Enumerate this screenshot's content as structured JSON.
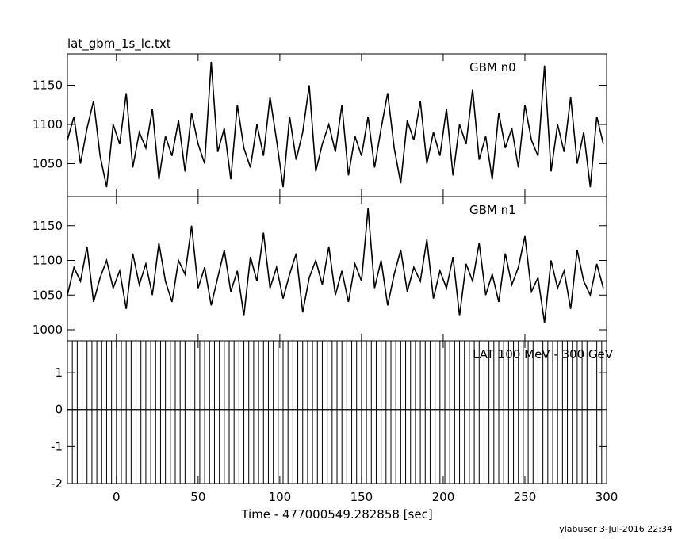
{
  "chart_data": [
    {
      "type": "line",
      "title": "lat_gbm_1s_lc.txt",
      "x": [
        -30,
        -26,
        -22,
        -18,
        -14,
        -10,
        -6,
        -2,
        2,
        6,
        10,
        14,
        18,
        22,
        26,
        30,
        34,
        38,
        42,
        46,
        50,
        54,
        58,
        62,
        66,
        70,
        74,
        78,
        82,
        86,
        90,
        94,
        98,
        102,
        106,
        110,
        114,
        118,
        122,
        126,
        130,
        134,
        138,
        142,
        146,
        150,
        154,
        158,
        162,
        166,
        170,
        174,
        178,
        182,
        186,
        190,
        194,
        198,
        202,
        206,
        210,
        214,
        218,
        222,
        226,
        230,
        234,
        238,
        242,
        246,
        250,
        254,
        258,
        262,
        266,
        270,
        274,
        278,
        282,
        286,
        290,
        294,
        298
      ],
      "series": [
        {
          "name": "GBM n0",
          "color": "#000000",
          "values": [
            1080,
            1110,
            1050,
            1095,
            1130,
            1060,
            1020,
            1100,
            1075,
            1140,
            1045,
            1090,
            1070,
            1120,
            1030,
            1085,
            1060,
            1105,
            1040,
            1115,
            1075,
            1050,
            1180,
            1065,
            1095,
            1030,
            1125,
            1070,
            1045,
            1100,
            1060,
            1135,
            1080,
            1020,
            1110,
            1055,
            1090,
            1150,
            1040,
            1075,
            1100,
            1065,
            1125,
            1035,
            1085,
            1060,
            1110,
            1045,
            1095,
            1140,
            1070,
            1025,
            1105,
            1080,
            1130,
            1050,
            1090,
            1060,
            1120,
            1035,
            1100,
            1075,
            1145,
            1055,
            1085,
            1030,
            1115,
            1070,
            1095,
            1045,
            1125,
            1080,
            1060,
            1175,
            1040,
            1100,
            1065,
            1135,
            1050,
            1090,
            1020,
            1110,
            1075
          ]
        }
      ],
      "xlim": [
        -30,
        300
      ],
      "xticks": [
        0,
        50,
        100,
        150,
        200,
        250,
        300
      ],
      "ylim": [
        1008,
        1190
      ],
      "yticks": [
        1050,
        1100,
        1150
      ]
    },
    {
      "type": "line",
      "x": [
        -30,
        -26,
        -22,
        -18,
        -14,
        -10,
        -6,
        -2,
        2,
        6,
        10,
        14,
        18,
        22,
        26,
        30,
        34,
        38,
        42,
        46,
        50,
        54,
        58,
        62,
        66,
        70,
        74,
        78,
        82,
        86,
        90,
        94,
        98,
        102,
        106,
        110,
        114,
        118,
        122,
        126,
        130,
        134,
        138,
        142,
        146,
        150,
        154,
        158,
        162,
        166,
        170,
        174,
        178,
        182,
        186,
        190,
        194,
        198,
        202,
        206,
        210,
        214,
        218,
        222,
        226,
        230,
        234,
        238,
        242,
        246,
        250,
        254,
        258,
        262,
        266,
        270,
        274,
        278,
        282,
        286,
        290,
        294,
        298
      ],
      "series": [
        {
          "name": "GBM n1",
          "color": "#000000",
          "values": [
            1050,
            1090,
            1070,
            1120,
            1040,
            1075,
            1100,
            1060,
            1085,
            1030,
            1110,
            1065,
            1095,
            1050,
            1125,
            1070,
            1040,
            1100,
            1080,
            1150,
            1060,
            1090,
            1035,
            1075,
            1115,
            1055,
            1085,
            1020,
            1105,
            1070,
            1140,
            1060,
            1090,
            1045,
            1080,
            1110,
            1025,
            1075,
            1100,
            1065,
            1120,
            1050,
            1085,
            1040,
            1095,
            1070,
            1175,
            1060,
            1100,
            1035,
            1080,
            1115,
            1055,
            1090,
            1070,
            1130,
            1045,
            1085,
            1060,
            1105,
            1020,
            1095,
            1070,
            1125,
            1050,
            1080,
            1040,
            1110,
            1065,
            1090,
            1135,
            1055,
            1075,
            1010,
            1100,
            1060,
            1085,
            1030,
            1115,
            1070,
            1050,
            1095,
            1060
          ]
        }
      ],
      "xlim": [
        -30,
        300
      ],
      "xticks": [
        0,
        50,
        100,
        150,
        200,
        250,
        300
      ],
      "ylim": [
        984,
        1192
      ],
      "yticks": [
        1000,
        1050,
        1100,
        1150
      ]
    },
    {
      "type": "errorbar",
      "xlabel": "Time - 477000549.282858 [sec]",
      "x": [
        -30,
        -27,
        -24,
        -21,
        -18,
        -15,
        -12,
        -9,
        -6,
        -3,
        0,
        3,
        6,
        9,
        12,
        15,
        18,
        21,
        24,
        27,
        30,
        33,
        36,
        39,
        42,
        45,
        48,
        51,
        54,
        57,
        60,
        63,
        66,
        69,
        72,
        75,
        78,
        81,
        84,
        87,
        90,
        93,
        96,
        99,
        102,
        105,
        108,
        111,
        114,
        117,
        120,
        123,
        126,
        129,
        132,
        135,
        138,
        141,
        144,
        147,
        150,
        153,
        156,
        159,
        162,
        165,
        168,
        171,
        174,
        177,
        180,
        183,
        186,
        189,
        192,
        195,
        198,
        201,
        204,
        207,
        210,
        213,
        216,
        219,
        222,
        225,
        228,
        231,
        234,
        237,
        240,
        243,
        246,
        249,
        252,
        255,
        258,
        261,
        264,
        267,
        270,
        273,
        276,
        279,
        282,
        285,
        288,
        291,
        294,
        297
      ],
      "series": [
        {
          "name": "LAT 100 MeV - 300 GeV",
          "color": "#000000",
          "values": [
            0,
            0,
            0,
            0,
            0,
            0,
            0,
            0,
            0,
            0,
            0,
            0,
            0,
            0,
            0,
            0,
            0,
            0,
            0,
            0,
            0,
            0,
            0,
            0,
            0,
            0,
            0,
            0,
            0,
            0,
            0,
            0,
            0,
            0,
            0,
            0,
            0,
            0,
            0,
            0,
            0,
            0,
            0,
            0,
            0,
            0,
            0,
            0,
            0,
            0,
            0,
            0,
            0,
            0,
            0,
            0,
            0,
            0,
            0,
            0,
            0,
            0,
            0,
            0,
            0,
            0,
            0,
            0,
            0,
            0,
            0,
            0,
            0,
            0,
            0,
            0,
            0,
            0,
            0,
            0,
            0,
            0,
            0,
            0,
            0,
            0,
            0,
            0,
            0,
            0,
            0,
            0,
            0,
            0,
            0,
            0,
            0,
            0,
            0,
            0,
            0,
            0,
            0,
            0,
            0,
            0,
            0,
            0,
            0,
            0
          ],
          "errors": [
            2,
            2,
            2,
            2,
            2,
            2,
            2,
            2,
            2,
            2,
            2,
            2,
            2,
            2,
            2,
            2,
            2,
            2,
            2,
            2,
            2,
            2,
            2,
            2,
            2,
            2,
            2,
            2,
            2,
            2,
            2,
            2,
            2,
            2,
            2,
            2,
            2,
            2,
            2,
            2,
            2,
            2,
            2,
            2,
            2,
            2,
            2,
            2,
            2,
            2,
            2,
            2,
            2,
            2,
            2,
            2,
            2,
            2,
            2,
            2,
            2,
            2,
            2,
            2,
            2,
            2,
            2,
            2,
            2,
            2,
            2,
            2,
            2,
            2,
            2,
            2,
            2,
            2,
            2,
            2,
            2,
            2,
            2,
            2,
            2,
            2,
            2,
            2,
            2,
            2,
            2,
            2,
            2,
            2,
            2,
            2,
            2,
            2,
            2,
            2,
            2,
            2,
            2,
            2,
            2,
            2,
            2,
            2,
            2,
            2
          ]
        }
      ],
      "xlim": [
        -30,
        300
      ],
      "xticks": [
        0,
        50,
        100,
        150,
        200,
        250,
        300
      ],
      "ylim": [
        -2,
        1.86
      ],
      "yticks": [
        -2,
        -1,
        0,
        1
      ]
    }
  ],
  "footer": "ylabuser  3-Jul-2016 22:34"
}
